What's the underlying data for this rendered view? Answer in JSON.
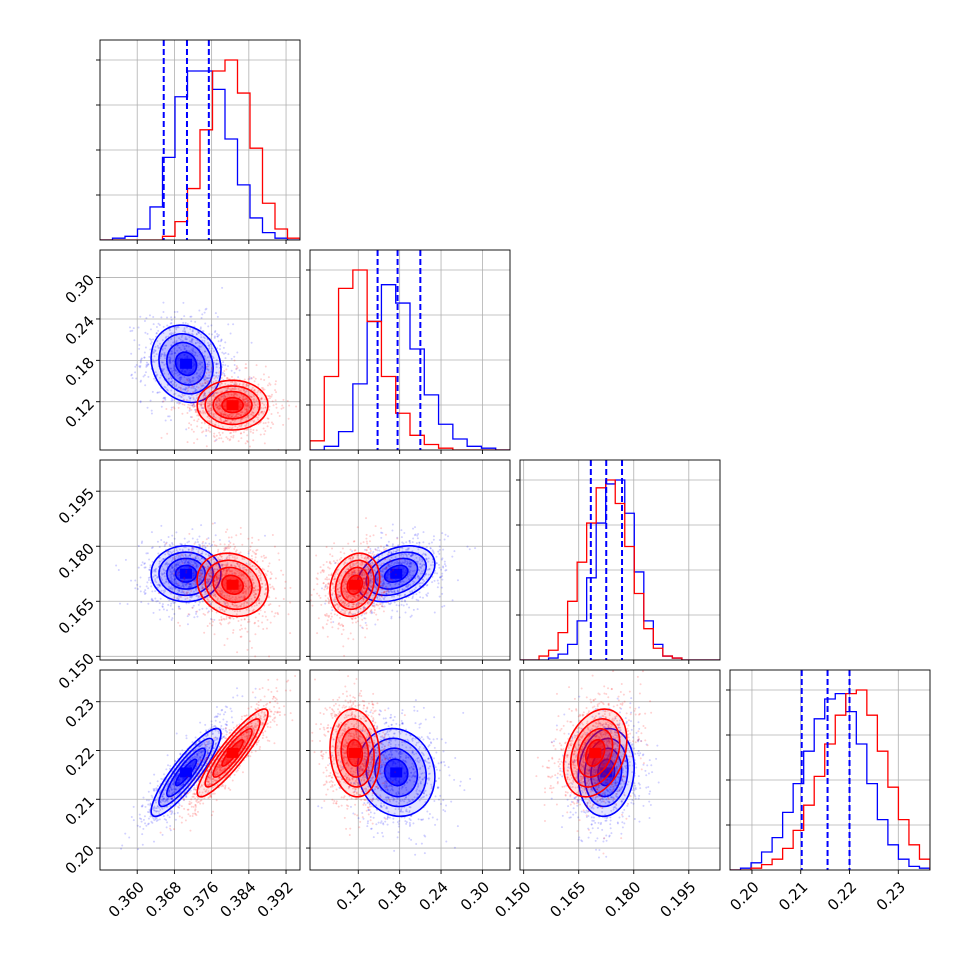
{
  "chart_data": {
    "type": "corner",
    "title": "",
    "grid": true,
    "parameters": [
      {
        "range": [
          0.352,
          0.395
        ],
        "ticks": [
          "0.360",
          "0.368",
          "0.376",
          "0.384",
          "0.392"
        ]
      },
      {
        "range": [
          0.05,
          0.34
        ],
        "ticks": [
          "0.12",
          "0.18",
          "0.24",
          "0.30"
        ]
      },
      {
        "range": [
          0.149,
          0.2035
        ],
        "ticks": [
          "0.150",
          "0.165",
          "0.180",
          "0.195"
        ]
      },
      {
        "range": [
          0.1955,
          0.2365
        ],
        "ticks": [
          "0.20",
          "0.21",
          "0.22",
          "0.23"
        ]
      }
    ],
    "series": [
      {
        "color": "#0000ff",
        "mean": [
          0.3705,
          0.175,
          0.1725,
          0.2155
        ],
        "sd": [
          0.00375,
          0.028,
          0.0038,
          0.0045
        ],
        "quantile_lines": [
          [
            0.3657,
            0.3707,
            0.3754
          ],
          [
            0.148,
            0.177,
            0.21
          ],
          [
            0.1683,
            0.1725,
            0.1768
          ],
          [
            0.2102,
            0.2155,
            0.22
          ]
        ],
        "histograms": [
          [
            0,
            1,
            2,
            6,
            18,
            45,
            78,
            92,
            92,
            82,
            55,
            30,
            12,
            4,
            1,
            0
          ],
          [
            0,
            2,
            10,
            36,
            70,
            90,
            80,
            55,
            30,
            14,
            6,
            2,
            1,
            0
          ],
          [
            0,
            0,
            0,
            1,
            3,
            8,
            20,
            42,
            70,
            90,
            92,
            75,
            45,
            20,
            8,
            2,
            1,
            0,
            0,
            0,
            0
          ],
          [
            0,
            1,
            4,
            10,
            18,
            32,
            48,
            66,
            84,
            95,
            98,
            88,
            70,
            48,
            28,
            14,
            6,
            2,
            1
          ]
        ],
        "correlations": {
          "1-0": -0.15,
          "2-0": 0.0,
          "3-0": 0.88,
          "2-1": 0.35,
          "3-1": -0.1,
          "3-2": 0.1
        }
      },
      {
        "color": "#ff0000",
        "mean": [
          0.3805,
          0.115,
          0.1695,
          0.2195
        ],
        "sd": [
          0.0038,
          0.018,
          0.0043,
          0.0045
        ],
        "histograms": [
          [
            0,
            0,
            0,
            0,
            0,
            2,
            10,
            28,
            60,
            92,
            98,
            80,
            50,
            20,
            6,
            1
          ],
          [
            5,
            40,
            88,
            98,
            70,
            40,
            20,
            8,
            3,
            1,
            0,
            0,
            0,
            0
          ],
          [
            0,
            0,
            2,
            5,
            14,
            30,
            50,
            70,
            88,
            92,
            80,
            58,
            34,
            16,
            6,
            2,
            1,
            0,
            0,
            0,
            0
          ],
          [
            0,
            0,
            1,
            3,
            6,
            12,
            22,
            36,
            52,
            70,
            86,
            98,
            100,
            86,
            66,
            46,
            28,
            14,
            6
          ]
        ],
        "correlations": {
          "1-0": 0.0,
          "2-0": -0.15,
          "3-0": 0.9,
          "2-1": 0.2,
          "3-1": -0.1,
          "3-2": 0.3
        }
      }
    ]
  }
}
